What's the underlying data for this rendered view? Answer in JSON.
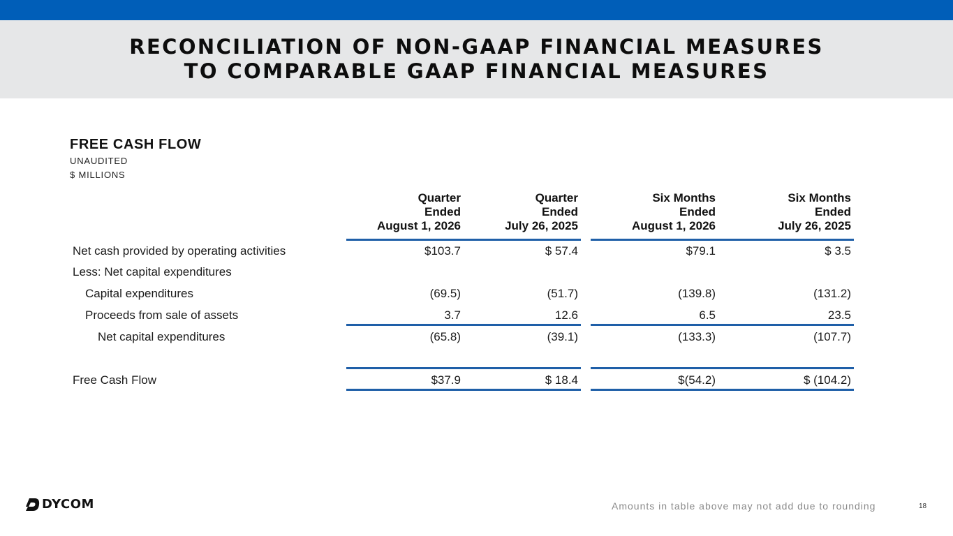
{
  "header": {
    "title_line1": "RECONCILIATION OF NON-GAAP FINANCIAL MEASURES",
    "title_line2": "TO COMPARABLE GAAP FINANCIAL MEASURES"
  },
  "section": {
    "title": "FREE CASH FLOW",
    "subtitle1": "UNAUDITED",
    "subtitle2": "$ MILLIONS"
  },
  "table": {
    "columns": [
      {
        "line1": "Quarter",
        "line2": "Ended",
        "line3": "August 1, 2026"
      },
      {
        "line1": "Quarter",
        "line2": "Ended",
        "line3": "July 26, 2025"
      },
      {
        "line1": "Six Months",
        "line2": "Ended",
        "line3": "August 1, 2026"
      },
      {
        "line1": "Six Months",
        "line2": "Ended",
        "line3": "July 26, 2025"
      }
    ],
    "rows": [
      {
        "label": "Net cash provided by operating activities",
        "values": [
          "$103.7",
          "$ 57.4",
          "$79.1",
          "$ 3.5"
        ]
      },
      {
        "label": "Less: Net capital expenditures",
        "values": [
          "",
          "",
          "",
          ""
        ]
      },
      {
        "label": "Capital expenditures",
        "values": [
          "(69.5)",
          "(51.7)",
          "(139.8)",
          "(131.2)"
        ]
      },
      {
        "label": "Proceeds from sale of assets",
        "values": [
          "3.7",
          "12.6",
          "6.5",
          "23.5"
        ]
      },
      {
        "label": "Net capital expenditures",
        "values": [
          "(65.8)",
          "(39.1)",
          "(133.3)",
          "(107.7)"
        ]
      },
      {
        "label": "Free Cash Flow",
        "values": [
          "$37.9",
          "$ 18.4",
          "$(54.2)",
          "$ (104.2)"
        ]
      }
    ]
  },
  "footer": {
    "note": "Amounts in table above may not add due to rounding",
    "page_number": "18",
    "logo_text": "DYCOM",
    "logo_icon": "dycom-logo-icon"
  },
  "colors": {
    "brand_blue": "#005eb8",
    "rule_blue": "#1f5fa8",
    "band_gray": "#e6e7e8"
  }
}
